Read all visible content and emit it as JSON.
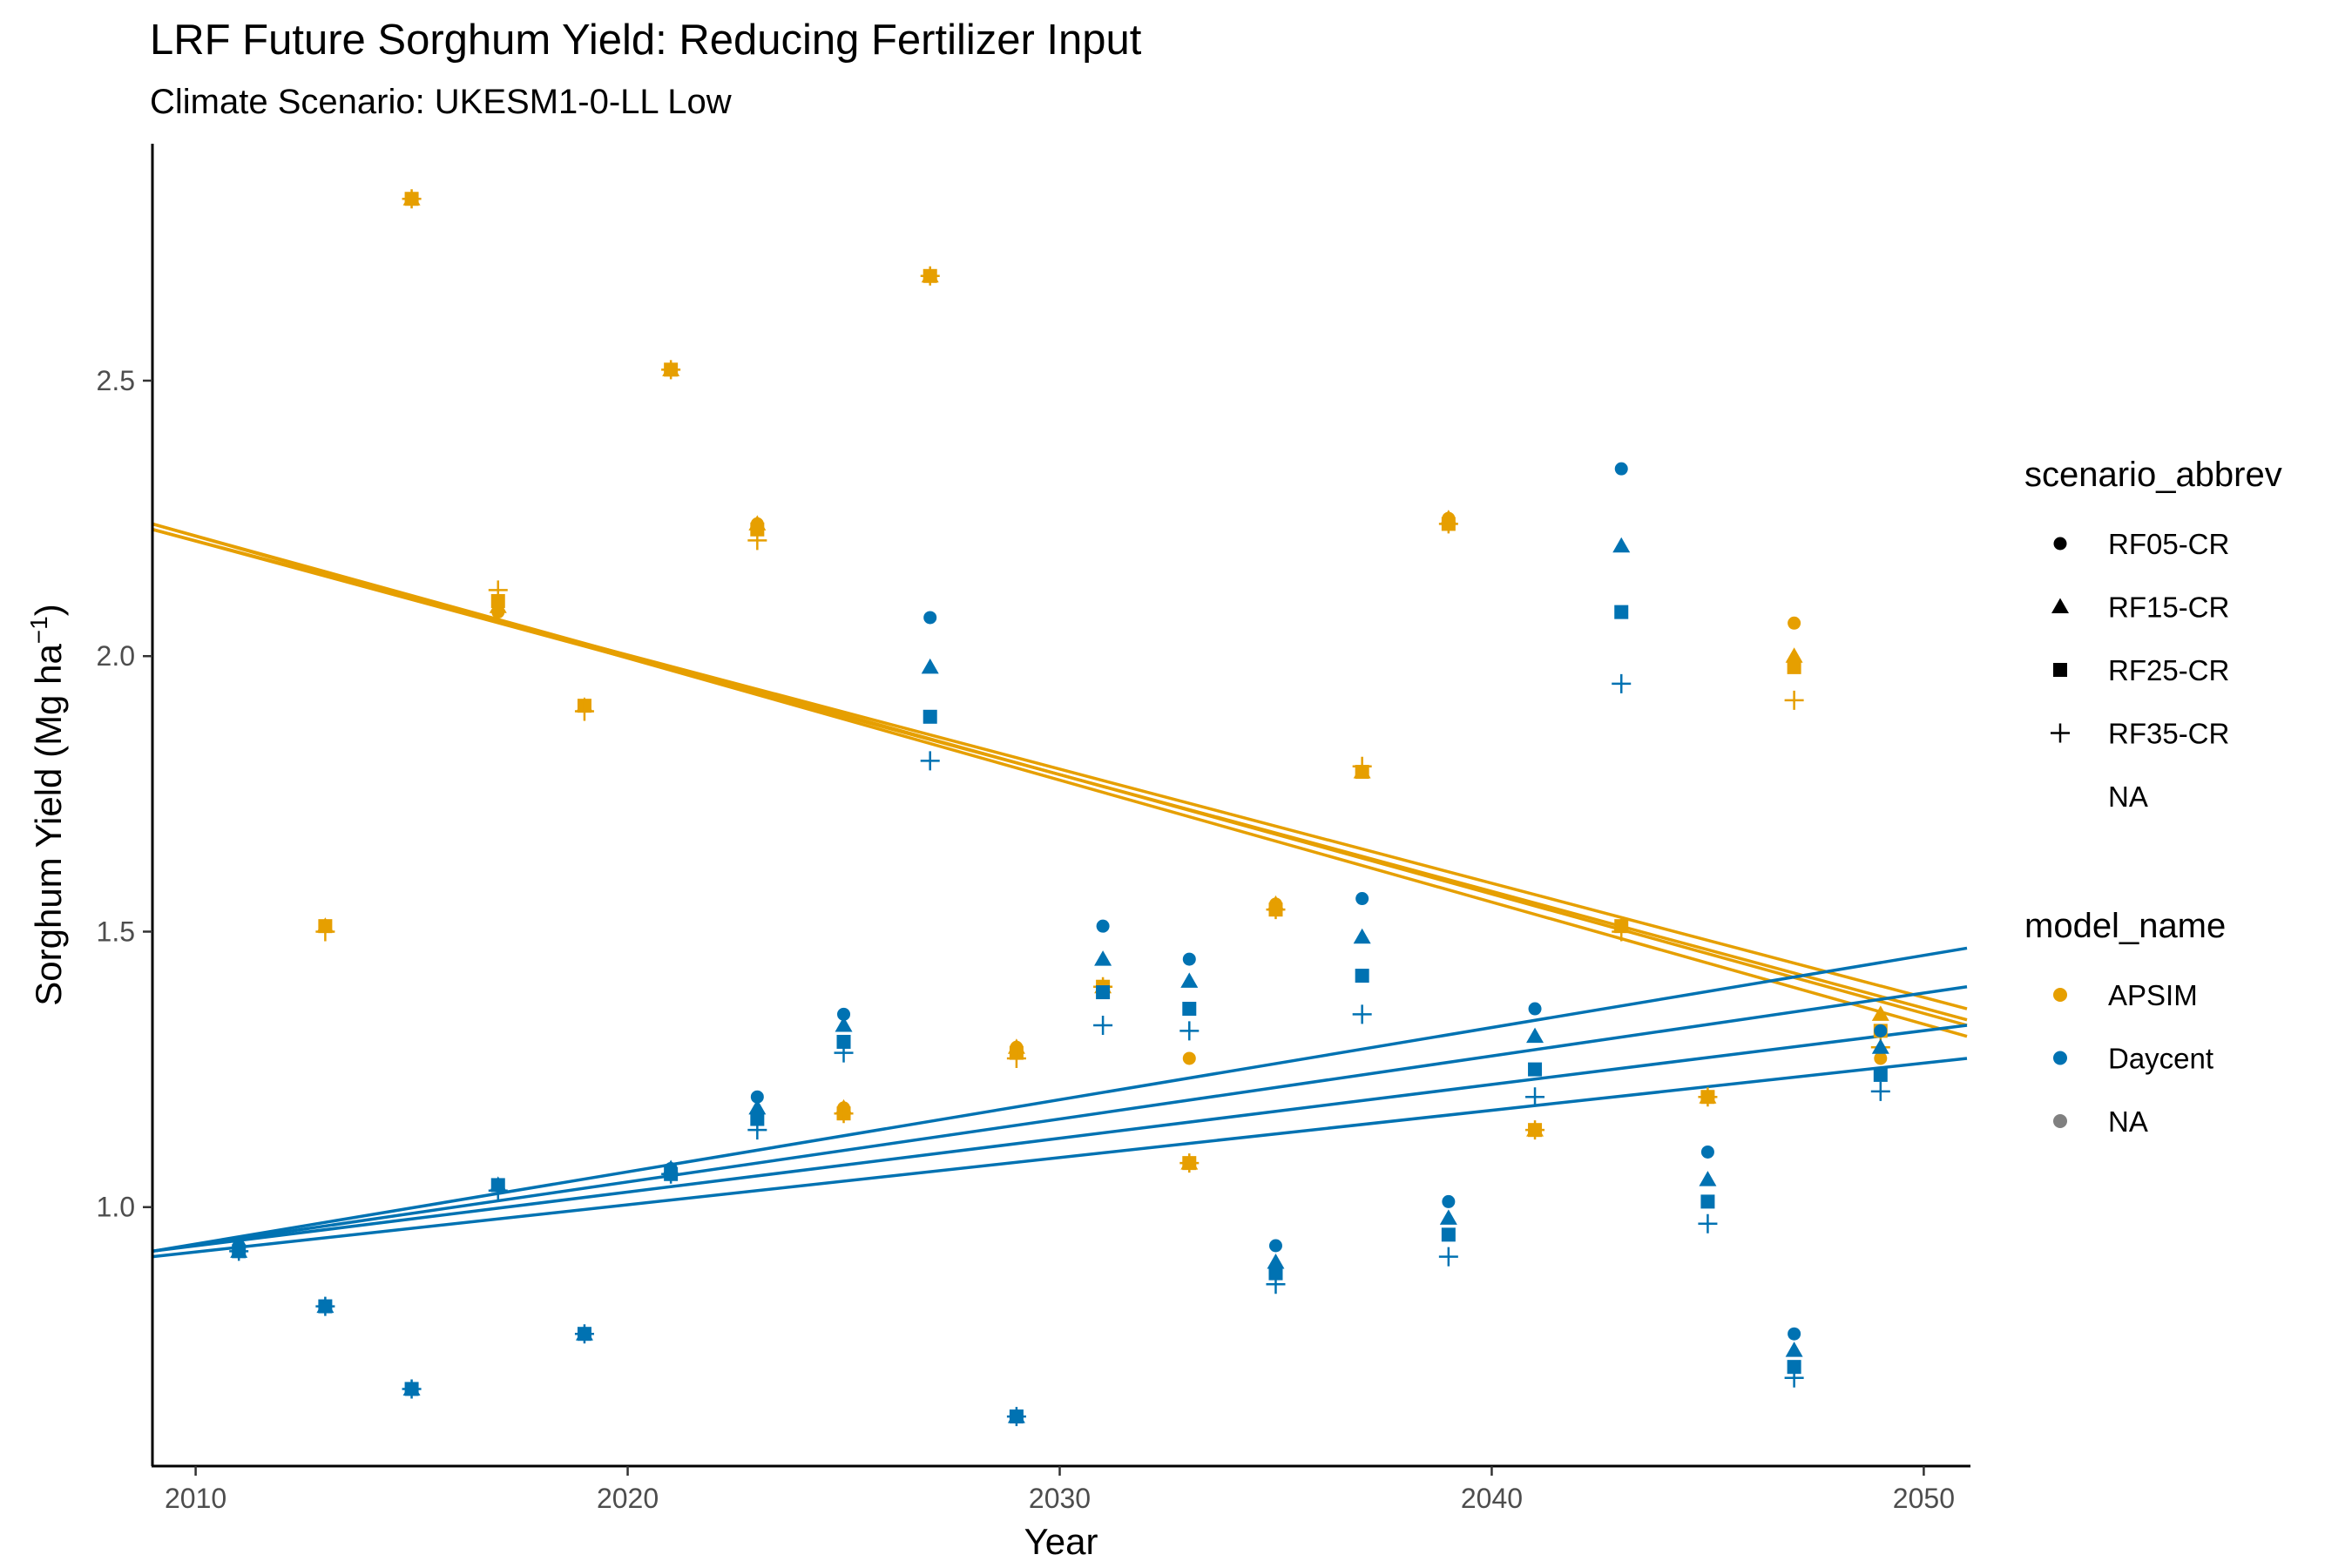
{
  "chart_data": {
    "type": "scatter",
    "title": "LRF Future Sorghum Yield: Reducing Fertilizer Input",
    "subtitle": "Climate Scenario: UKESM1-0-LL Low",
    "xlabel": "Year",
    "ylabel": "Sorghum Yield (Mg ha",
    "ylabel_sup": "−1",
    "ylabel_close": ")",
    "xlim": [
      2009,
      2051
    ],
    "ylim": [
      0.53,
      2.93
    ],
    "xticks": [
      2010,
      2020,
      2030,
      2040,
      2050
    ],
    "yticks": [
      1.0,
      1.5,
      2.0,
      2.5
    ],
    "ytick_labels": [
      "1.0",
      "1.5",
      "2.0",
      "2.5"
    ],
    "grid": false,
    "legend_position": "right",
    "colors": {
      "APSIM": "#E69F00",
      "Daycent": "#0072B2",
      "NA": "#808080"
    },
    "legends": [
      {
        "title": "scenario_abbrev",
        "items": [
          {
            "label": "RF05-CR",
            "shape": "circle"
          },
          {
            "label": "RF15-CR",
            "shape": "triangle"
          },
          {
            "label": "RF25-CR",
            "shape": "square"
          },
          {
            "label": "RF35-CR",
            "shape": "plus"
          },
          {
            "label": "NA",
            "shape": "none"
          }
        ]
      },
      {
        "title": "model_name",
        "items": [
          {
            "label": "APSIM",
            "color": "#E69F00"
          },
          {
            "label": "Daycent",
            "color": "#0072B2"
          },
          {
            "label": "NA",
            "color": "#808080"
          }
        ]
      }
    ],
    "series": [
      {
        "model": "APSIM",
        "scenario": "RF05-CR",
        "points": [
          [
            2013,
            1.51
          ],
          [
            2015,
            2.83
          ],
          [
            2017,
            2.08
          ],
          [
            2019,
            1.91
          ],
          [
            2021,
            2.52
          ],
          [
            2023,
            2.24
          ],
          [
            2025,
            1.18
          ],
          [
            2027,
            2.69
          ],
          [
            2029,
            1.29
          ],
          [
            2031,
            1.39
          ],
          [
            2033,
            1.27
          ],
          [
            2035,
            1.55
          ],
          [
            2037,
            1.79
          ],
          [
            2039,
            2.25
          ],
          [
            2041,
            1.14
          ],
          [
            2043,
            1.51
          ],
          [
            2045,
            1.2
          ],
          [
            2047,
            2.06
          ],
          [
            2049,
            1.27
          ]
        ],
        "trend": [
          [
            2009,
            2.24
          ],
          [
            2051,
            1.31
          ]
        ]
      },
      {
        "model": "APSIM",
        "scenario": "RF15-CR",
        "points": [
          [
            2013,
            1.51
          ],
          [
            2015,
            2.83
          ],
          [
            2017,
            2.09
          ],
          [
            2019,
            1.91
          ],
          [
            2021,
            2.52
          ],
          [
            2023,
            2.24
          ],
          [
            2025,
            1.18
          ],
          [
            2027,
            2.69
          ],
          [
            2029,
            1.29
          ],
          [
            2031,
            1.4
          ],
          [
            2033,
            1.08
          ],
          [
            2035,
            1.55
          ],
          [
            2037,
            1.79
          ],
          [
            2039,
            2.25
          ],
          [
            2041,
            1.14
          ],
          [
            2043,
            1.51
          ],
          [
            2045,
            1.2
          ],
          [
            2047,
            2.0
          ],
          [
            2049,
            1.35
          ]
        ],
        "trend": [
          [
            2009,
            2.24
          ],
          [
            2051,
            1.33
          ]
        ]
      },
      {
        "model": "APSIM",
        "scenario": "RF25-CR",
        "points": [
          [
            2013,
            1.51
          ],
          [
            2015,
            2.83
          ],
          [
            2017,
            2.1
          ],
          [
            2019,
            1.91
          ],
          [
            2021,
            2.52
          ],
          [
            2023,
            2.23
          ],
          [
            2025,
            1.17
          ],
          [
            2027,
            2.69
          ],
          [
            2029,
            1.28
          ],
          [
            2031,
            1.4
          ],
          [
            2033,
            1.08
          ],
          [
            2035,
            1.54
          ],
          [
            2037,
            1.79
          ],
          [
            2039,
            2.24
          ],
          [
            2041,
            1.14
          ],
          [
            2043,
            1.51
          ],
          [
            2045,
            1.2
          ],
          [
            2047,
            1.98
          ],
          [
            2049,
            1.32
          ]
        ],
        "trend": [
          [
            2009,
            2.23
          ],
          [
            2051,
            1.34
          ]
        ]
      },
      {
        "model": "APSIM",
        "scenario": "RF35-CR",
        "points": [
          [
            2013,
            1.5
          ],
          [
            2015,
            2.83
          ],
          [
            2017,
            2.12
          ],
          [
            2019,
            1.9
          ],
          [
            2021,
            2.52
          ],
          [
            2023,
            2.21
          ],
          [
            2025,
            1.17
          ],
          [
            2027,
            2.69
          ],
          [
            2029,
            1.27
          ],
          [
            2031,
            1.4
          ],
          [
            2033,
            1.08
          ],
          [
            2035,
            1.54
          ],
          [
            2037,
            1.8
          ],
          [
            2039,
            2.24
          ],
          [
            2041,
            1.14
          ],
          [
            2043,
            1.5
          ],
          [
            2045,
            1.2
          ],
          [
            2047,
            1.92
          ],
          [
            2049,
            1.29
          ]
        ],
        "trend": [
          [
            2009,
            2.23
          ],
          [
            2051,
            1.36
          ]
        ]
      },
      {
        "model": "Daycent",
        "scenario": "RF05-CR",
        "points": [
          [
            2011,
            0.93
          ],
          [
            2013,
            0.82
          ],
          [
            2015,
            0.67
          ],
          [
            2017,
            1.04
          ],
          [
            2019,
            0.77
          ],
          [
            2021,
            1.07
          ],
          [
            2023,
            1.2
          ],
          [
            2025,
            1.35
          ],
          [
            2027,
            2.07
          ],
          [
            2029,
            0.62
          ],
          [
            2031,
            1.51
          ],
          [
            2033,
            1.45
          ],
          [
            2035,
            0.93
          ],
          [
            2037,
            1.56
          ],
          [
            2039,
            1.01
          ],
          [
            2041,
            1.36
          ],
          [
            2043,
            2.34
          ],
          [
            2045,
            1.1
          ],
          [
            2047,
            0.77
          ],
          [
            2049,
            1.32
          ]
        ],
        "trend": [
          [
            2009,
            0.92
          ],
          [
            2051,
            1.47
          ]
        ]
      },
      {
        "model": "Daycent",
        "scenario": "RF15-CR",
        "points": [
          [
            2011,
            0.92
          ],
          [
            2013,
            0.82
          ],
          [
            2015,
            0.67
          ],
          [
            2017,
            1.04
          ],
          [
            2019,
            0.77
          ],
          [
            2021,
            1.07
          ],
          [
            2023,
            1.18
          ],
          [
            2025,
            1.33
          ],
          [
            2027,
            1.98
          ],
          [
            2029,
            0.62
          ],
          [
            2031,
            1.45
          ],
          [
            2033,
            1.41
          ],
          [
            2035,
            0.9
          ],
          [
            2037,
            1.49
          ],
          [
            2039,
            0.98
          ],
          [
            2041,
            1.31
          ],
          [
            2043,
            2.2
          ],
          [
            2045,
            1.05
          ],
          [
            2047,
            0.74
          ],
          [
            2049,
            1.29
          ]
        ],
        "trend": [
          [
            2009,
            0.92
          ],
          [
            2051,
            1.4
          ]
        ]
      },
      {
        "model": "Daycent",
        "scenario": "RF25-CR",
        "points": [
          [
            2011,
            0.92
          ],
          [
            2013,
            0.82
          ],
          [
            2015,
            0.67
          ],
          [
            2017,
            1.04
          ],
          [
            2019,
            0.77
          ],
          [
            2021,
            1.06
          ],
          [
            2023,
            1.16
          ],
          [
            2025,
            1.3
          ],
          [
            2027,
            1.89
          ],
          [
            2029,
            0.62
          ],
          [
            2031,
            1.39
          ],
          [
            2033,
            1.36
          ],
          [
            2035,
            0.88
          ],
          [
            2037,
            1.42
          ],
          [
            2039,
            0.95
          ],
          [
            2041,
            1.25
          ],
          [
            2043,
            2.08
          ],
          [
            2045,
            1.01
          ],
          [
            2047,
            0.71
          ],
          [
            2049,
            1.24
          ]
        ],
        "trend": [
          [
            2009,
            0.92
          ],
          [
            2051,
            1.33
          ]
        ]
      },
      {
        "model": "Daycent",
        "scenario": "RF35-CR",
        "points": [
          [
            2011,
            0.92
          ],
          [
            2013,
            0.82
          ],
          [
            2015,
            0.67
          ],
          [
            2017,
            1.03
          ],
          [
            2019,
            0.77
          ],
          [
            2021,
            1.06
          ],
          [
            2023,
            1.14
          ],
          [
            2025,
            1.28
          ],
          [
            2027,
            1.81
          ],
          [
            2029,
            0.62
          ],
          [
            2031,
            1.33
          ],
          [
            2033,
            1.32
          ],
          [
            2035,
            0.86
          ],
          [
            2037,
            1.35
          ],
          [
            2039,
            0.91
          ],
          [
            2041,
            1.2
          ],
          [
            2043,
            1.95
          ],
          [
            2045,
            0.97
          ],
          [
            2047,
            0.69
          ],
          [
            2049,
            1.21
          ]
        ],
        "trend": [
          [
            2009,
            0.91
          ],
          [
            2051,
            1.27
          ]
        ]
      }
    ]
  }
}
